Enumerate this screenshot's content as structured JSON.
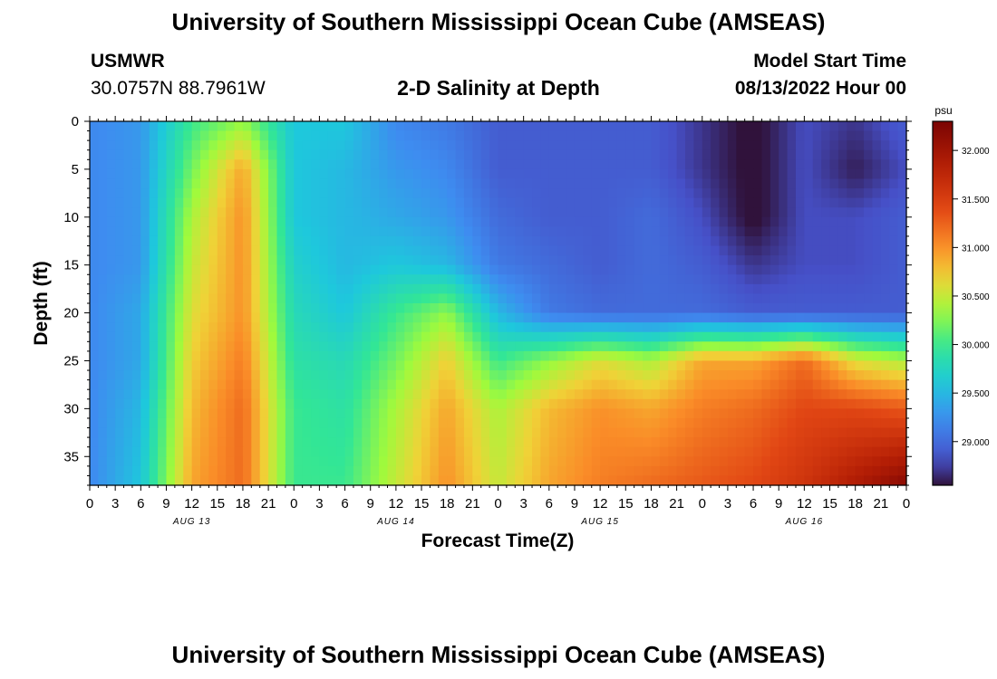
{
  "header": {
    "title": "University of Southern Mississippi Ocean Cube (AMSEAS)",
    "station_name": "USMWR",
    "station_coords": "30.0757N  88.7961W",
    "plot_title": "2-D Salinity at Depth",
    "model_label": "Model Start Time",
    "model_start": "08/13/2022 Hour 00"
  },
  "footer": {
    "title": "University of Southern Mississippi Ocean Cube (AMSEAS)"
  },
  "chart_data": {
    "type": "heatmap",
    "title": "2-D Salinity at Depth",
    "xlabel": "Forecast Time(Z)",
    "ylabel": "Depth (ft)",
    "x_range_hours": [
      0,
      96
    ],
    "y_range_ft": [
      0,
      38
    ],
    "x_tick_labels": [
      "0",
      "3",
      "6",
      "9",
      "12",
      "15",
      "18",
      "21",
      "0",
      "3",
      "6",
      "9",
      "12",
      "15",
      "18",
      "21",
      "0",
      "3",
      "6",
      "9",
      "12",
      "15",
      "18",
      "21",
      "0",
      "3",
      "6",
      "9",
      "12",
      "15",
      "18",
      "21",
      "0"
    ],
    "day_labels": [
      {
        "text": "AUG 13",
        "hour": 12
      },
      {
        "text": "AUG 14",
        "hour": 36
      },
      {
        "text": "AUG 15",
        "hour": 60
      },
      {
        "text": "AUG 16",
        "hour": 84
      }
    ],
    "y_ticks": [
      0,
      5,
      10,
      15,
      20,
      25,
      30,
      35
    ],
    "colorbar": {
      "unit": "psu",
      "range": [
        28.55,
        32.3
      ],
      "ticks": [
        "29.000",
        "29.500",
        "30.000",
        "30.500",
        "31.000",
        "31.500",
        "32.000"
      ]
    },
    "grid_hours": [
      0,
      6,
      12,
      18,
      24,
      30,
      36,
      42,
      48,
      54,
      60,
      66,
      72,
      78,
      84,
      90,
      96
    ],
    "grid_depths_ft": [
      0,
      5,
      10,
      15,
      20,
      25,
      30,
      38
    ],
    "salinity_psu": [
      [
        29.2,
        29.3,
        30.0,
        30.3,
        29.6,
        29.6,
        29.2,
        29.1,
        28.9,
        28.9,
        28.9,
        28.9,
        28.7,
        28.5,
        28.8,
        28.7,
        28.9
      ],
      [
        29.2,
        29.3,
        30.2,
        30.9,
        29.6,
        29.5,
        29.3,
        29.2,
        28.9,
        28.9,
        28.9,
        28.9,
        28.7,
        28.5,
        28.8,
        28.6,
        28.8
      ],
      [
        29.2,
        29.3,
        30.4,
        31.0,
        29.6,
        29.5,
        29.4,
        29.3,
        29.0,
        28.9,
        28.9,
        29.0,
        28.8,
        28.5,
        28.8,
        28.8,
        28.9
      ],
      [
        29.2,
        29.3,
        30.5,
        31.0,
        29.7,
        29.5,
        29.6,
        29.5,
        29.1,
        29.0,
        28.9,
        29.0,
        28.9,
        28.7,
        28.8,
        28.8,
        28.9
      ],
      [
        29.2,
        29.4,
        30.6,
        31.0,
        29.8,
        29.6,
        30.0,
        30.3,
        29.5,
        29.1,
        29.0,
        29.0,
        29.0,
        28.9,
        28.9,
        28.9,
        28.9
      ],
      [
        29.2,
        29.4,
        30.7,
        31.1,
        29.9,
        29.8,
        30.2,
        30.7,
        30.0,
        30.3,
        30.6,
        30.4,
        30.9,
        30.9,
        31.2,
        30.6,
        30.4
      ],
      [
        29.2,
        29.5,
        30.8,
        31.2,
        30.0,
        29.9,
        30.4,
        30.9,
        30.4,
        30.8,
        31.0,
        30.9,
        31.1,
        31.2,
        31.4,
        31.4,
        31.3
      ],
      [
        29.2,
        29.6,
        30.9,
        31.2,
        30.0,
        30.0,
        30.5,
        31.0,
        30.5,
        30.9,
        31.1,
        31.2,
        31.3,
        31.4,
        31.6,
        31.9,
        32.2
      ]
    ]
  }
}
